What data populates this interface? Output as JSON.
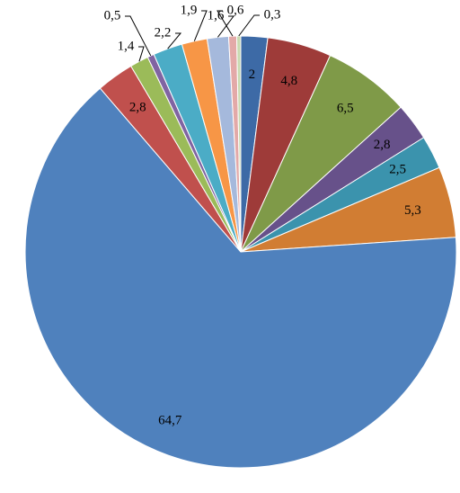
{
  "chart_data": {
    "type": "pie",
    "values": [
      2,
      4.8,
      6.5,
      2.8,
      2.5,
      5.3,
      64.7,
      2.8,
      1.4,
      0.5,
      2.2,
      1.9,
      1.6,
      0.6,
      0.3
    ],
    "value_labels": [
      "2",
      "4,8",
      "6,5",
      "2,8",
      "2,5",
      "5,3",
      "64,7",
      "2,8",
      "1,4",
      "0,5",
      "2,2",
      "1,9",
      "1,6",
      "0,6",
      "0,3"
    ],
    "colors": [
      "#3d6aa6",
      "#9e3b39",
      "#7f9a48",
      "#67518a",
      "#3b93ad",
      "#d17d33",
      "#4f81bd",
      "#c0504d",
      "#9bbb59",
      "#8064a2",
      "#4bacc6",
      "#f79646",
      "#a5b9dc",
      "#e3a9a8",
      "#c8dab0"
    ]
  }
}
